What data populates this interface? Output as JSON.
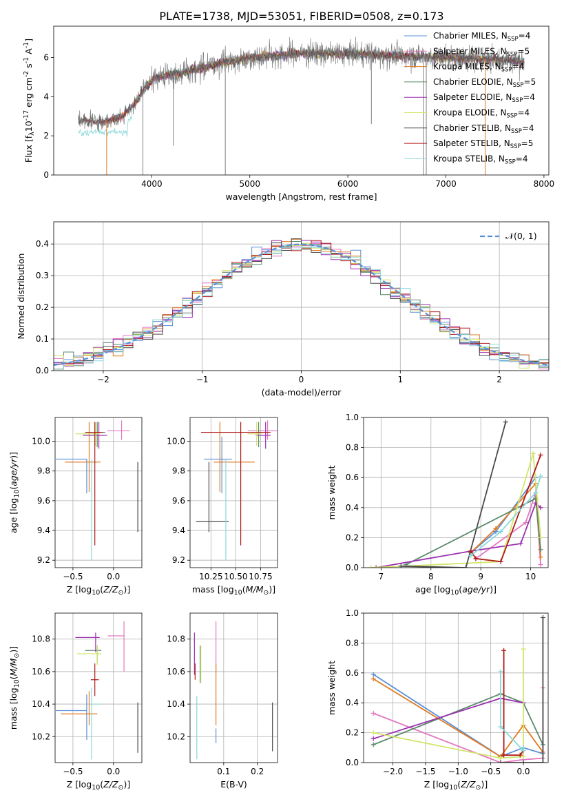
{
  "title": "PLATE=1738, MJD=53051, FIBERID=0508, z=0.173",
  "colors": {
    "Chabrier MILES": "#5a8fd8",
    "Salpeter MILES": "#e377c2",
    "Kroupa MILES": "#e07a1f",
    "Chabrier ELODIE": "#5b8a6a",
    "Salpeter ELODIE": "#9a2fb0",
    "Kroupa ELODIE": "#d2e66a",
    "Chabrier STELIB": "#4a4a4a",
    "Salpeter STELIB": "#b01818",
    "Kroupa STELIB": "#8ad8d8",
    "data": "#808080",
    "normal": "#5a8fd8"
  },
  "chart_data": [
    {
      "id": "spectrum",
      "type": "line",
      "xlabel": "wavelength [Angstrom, rest frame]",
      "ylabel": "Flux [f$_\\lambda$10$^{-17}$ erg cm$^{-2}$ s$^{-1}$ A$^{-1}$]",
      "xlim": [
        3000,
        8050
      ],
      "ylim": [
        0,
        7.6
      ],
      "xticks": [
        4000,
        5000,
        6000,
        7000,
        8000
      ],
      "yticks": [
        0,
        2,
        4,
        6
      ],
      "legend_position": "top-right",
      "legend": [
        {
          "base": "Chabrier MILES, N",
          "sub": "SSP",
          "tail": "=4"
        },
        {
          "base": "Salpeter MILES, N",
          "sub": "SSP",
          "tail": "=5"
        },
        {
          "base": "Kroupa MILES, N",
          "sub": "SSP",
          "tail": "=4"
        },
        {
          "base": "Chabrier ELODIE, N",
          "sub": "SSP",
          "tail": "=5"
        },
        {
          "base": "Salpeter ELODIE, N",
          "sub": "SSP",
          "tail": "=4"
        },
        {
          "base": "Kroupa ELODIE, N",
          "sub": "SSP",
          "tail": "=4"
        },
        {
          "base": "Chabrier STELIB, N",
          "sub": "SSP",
          "tail": "=4"
        },
        {
          "base": "Salpeter STELIB, N",
          "sub": "SSP",
          "tail": "=5"
        },
        {
          "base": "Kroupa STELIB, N",
          "sub": "SSP",
          "tail": "=4"
        }
      ],
      "continuum": [
        [
          3250,
          2.8
        ],
        [
          3500,
          2.7
        ],
        [
          3700,
          3.0
        ],
        [
          3850,
          3.8
        ],
        [
          3950,
          4.6
        ],
        [
          4050,
          5.0
        ],
        [
          4300,
          5.2
        ],
        [
          4600,
          5.6
        ],
        [
          5000,
          6.0
        ],
        [
          5500,
          6.2
        ],
        [
          6000,
          6.2
        ],
        [
          6500,
          6.1
        ],
        [
          7000,
          6.0
        ],
        [
          7500,
          5.9
        ],
        [
          7800,
          5.8
        ]
      ],
      "spikes": [
        [
          3540,
          0
        ],
        [
          3910,
          0
        ],
        [
          4750,
          0
        ],
        [
          6770,
          0
        ],
        [
          6800,
          0
        ],
        [
          7400,
          0
        ],
        [
          4220,
          1.5
        ],
        [
          6240,
          2.6
        ]
      ]
    },
    {
      "id": "residuals",
      "type": "histogram",
      "xlabel": "(data-model)/error",
      "ylabel": "Normed distribution",
      "xlim": [
        -2.5,
        2.5
      ],
      "ylim": [
        0,
        0.47
      ],
      "xticks": [
        -2,
        -1,
        0,
        1,
        2
      ],
      "yticks": [
        0.0,
        0.1,
        0.2,
        0.3,
        0.4
      ],
      "bin_width": 0.1,
      "normal_label": "𝒩(0, 1)",
      "legend_position": "top-right"
    },
    {
      "id": "age_vs_Z",
      "type": "errorbar",
      "xlabel": "Z [log$_{10}$($Z/Z_\\odot$)]",
      "ylabel": "age  [log$_{10}$($age/yr$)]",
      "xlim": [
        -0.72,
        0.35
      ],
      "ylim": [
        9.15,
        10.16
      ],
      "xticks": [
        -0.5,
        0.0
      ],
      "yticks": [
        9.2,
        9.4,
        9.6,
        9.8,
        10.0
      ],
      "points": [
        {
          "m": "Chabrier MILES",
          "x": -0.33,
          "y": 9.88,
          "xerr": [
            0.38,
            0.0
          ],
          "yerr": [
            0.23,
            0.0
          ]
        },
        {
          "m": "Salpeter MILES",
          "x": 0.1,
          "y": 10.07,
          "xerr": [
            0.18,
            0.1
          ],
          "yerr": [
            0.06,
            0.07
          ]
        },
        {
          "m": "Kroupa MILES",
          "x": -0.3,
          "y": 9.86,
          "xerr": [
            0.3,
            0.14
          ],
          "yerr": [
            0.2,
            0.27
          ]
        },
        {
          "m": "Chabrier ELODIE",
          "x": -0.2,
          "y": 10.06,
          "xerr": [
            0.12,
            0.1
          ],
          "yerr": [
            0.1,
            0.07
          ]
        },
        {
          "m": "Salpeter ELODIE",
          "x": -0.18,
          "y": 10.04,
          "xerr": [
            0.2,
            0.1
          ],
          "yerr": [
            0.09,
            0.09
          ]
        },
        {
          "m": "Kroupa ELODIE",
          "x": -0.22,
          "y": 10.05,
          "xerr": [
            0.25,
            0.05
          ],
          "yerr": [
            0.08,
            0.08
          ]
        },
        {
          "m": "Chabrier STELIB",
          "x": 0.3,
          "y": 9.46,
          "xerr": [
            0.0,
            0.0
          ],
          "yerr": [
            0.07,
            0.4
          ]
        },
        {
          "m": "Salpeter STELIB",
          "x": -0.23,
          "y": 10.06,
          "xerr": [
            0.12,
            0.1
          ],
          "yerr": [
            0.76,
            0.07
          ]
        },
        {
          "m": "Kroupa STELIB",
          "x": -0.27,
          "y": 9.88,
          "xerr": [
            0.0,
            0.0
          ],
          "yerr": [
            0.68,
            0.0
          ]
        }
      ]
    },
    {
      "id": "age_vs_mass",
      "type": "errorbar",
      "xlabel": "mass [log$_{10}$($M/M_\\odot$)]",
      "ylabel": "",
      "xlim": [
        10.04,
        10.92
      ],
      "ylim": [
        9.15,
        10.16
      ],
      "xticks": [
        10.25,
        10.5,
        10.75
      ],
      "yticks": [
        9.2,
        9.4,
        9.6,
        9.8,
        10.0
      ],
      "points": [
        {
          "m": "Chabrier MILES",
          "x": 10.36,
          "y": 9.88,
          "xerr": [
            0.18,
            0.1
          ],
          "yerr": [
            0.23,
            0.15
          ]
        },
        {
          "m": "Salpeter MILES",
          "x": 10.82,
          "y": 10.07,
          "xerr": [
            0.2,
            0.1
          ],
          "yerr": [
            0.06,
            0.07
          ]
        },
        {
          "m": "Kroupa MILES",
          "x": 10.34,
          "y": 9.86,
          "xerr": [
            0.06,
            0.35
          ],
          "yerr": [
            0.2,
            0.27
          ]
        },
        {
          "m": "Chabrier ELODIE",
          "x": 10.73,
          "y": 10.06,
          "xerr": [
            0.08,
            0.05
          ],
          "yerr": [
            0.1,
            0.07
          ]
        },
        {
          "m": "Salpeter ELODIE",
          "x": 10.8,
          "y": 10.04,
          "xerr": [
            0.1,
            0.05
          ],
          "yerr": [
            0.09,
            0.09
          ]
        },
        {
          "m": "Kroupa ELODIE",
          "x": 10.71,
          "y": 10.05,
          "xerr": [
            0.09,
            0.05
          ],
          "yerr": [
            0.08,
            0.08
          ]
        },
        {
          "m": "Chabrier STELIB",
          "x": 10.23,
          "y": 9.46,
          "xerr": [
            0.13,
            0.2
          ],
          "yerr": [
            0.07,
            0.4
          ]
        },
        {
          "m": "Salpeter STELIB",
          "x": 10.55,
          "y": 10.06,
          "xerr": [
            0.4,
            0.3
          ],
          "yerr": [
            0.76,
            0.07
          ]
        },
        {
          "m": "Kroupa STELIB",
          "x": 10.4,
          "y": 9.88,
          "xerr": [
            0.0,
            0.0
          ],
          "yerr": [
            0.68,
            0.0
          ]
        }
      ]
    },
    {
      "id": "mass_vs_Z",
      "type": "errorbar",
      "xlabel": "Z [log$_{10}$($Z/Z_\\odot$)]",
      "ylabel": "mass [log$_{10}$($M/M_\\odot$)]",
      "xlim": [
        -0.72,
        0.35
      ],
      "ylim": [
        10.04,
        10.96
      ],
      "xticks": [
        -0.5,
        0.0
      ],
      "yticks": [
        10.2,
        10.4,
        10.6,
        10.8
      ],
      "points": [
        {
          "m": "Chabrier MILES",
          "x": -0.33,
          "y": 10.36,
          "xerr": [
            0.38,
            0.0
          ],
          "yerr": [
            0.18,
            0.1
          ]
        },
        {
          "m": "Salpeter MILES",
          "x": 0.13,
          "y": 10.82,
          "xerr": [
            0.2,
            0.0
          ],
          "yerr": [
            0.22,
            0.09
          ]
        },
        {
          "m": "Kroupa MILES",
          "x": -0.3,
          "y": 10.34,
          "xerr": [
            0.35,
            0.1
          ],
          "yerr": [
            0.07,
            0.14
          ]
        },
        {
          "m": "Chabrier ELODIE",
          "x": -0.2,
          "y": 10.73,
          "xerr": [
            0.15,
            0.05
          ],
          "yerr": [
            0.08,
            0.03
          ]
        },
        {
          "m": "Salpeter ELODIE",
          "x": -0.22,
          "y": 10.81,
          "xerr": [
            0.25,
            0.05
          ],
          "yerr": [
            0.09,
            0.03
          ]
        },
        {
          "m": "Kroupa ELODIE",
          "x": -0.2,
          "y": 10.71,
          "xerr": [
            0.25,
            0.05
          ],
          "yerr": [
            0.07,
            0.05
          ]
        },
        {
          "m": "Chabrier STELIB",
          "x": 0.3,
          "y": 10.23,
          "xerr": [
            0.0,
            0.0
          ],
          "yerr": [
            0.13,
            0.18
          ]
        },
        {
          "m": "Salpeter STELIB",
          "x": -0.23,
          "y": 10.55,
          "xerr": [
            0.05,
            0.05
          ],
          "yerr": [
            0.1,
            0.1
          ]
        },
        {
          "m": "Kroupa STELIB",
          "x": -0.27,
          "y": 10.4,
          "xerr": [
            0.0,
            0.1
          ],
          "yerr": [
            0.34,
            0.1
          ]
        }
      ]
    },
    {
      "id": "mass_vs_EBV",
      "type": "errorbar",
      "xlabel": "E(B-V)",
      "ylabel": "",
      "xlim": [
        0.0,
        0.26
      ],
      "ylim": [
        10.04,
        10.96
      ],
      "xticks": [
        0.1,
        0.2
      ],
      "yticks": [
        10.2,
        10.4,
        10.6,
        10.8
      ],
      "points": [
        {
          "m": "Chabrier MILES",
          "x": 0.077,
          "y": 10.2,
          "xerr": [
            0.0,
            0.0
          ],
          "yerr": [
            0.04,
            0.05
          ]
        },
        {
          "m": "Salpeter MILES",
          "x": 0.077,
          "y": 10.82,
          "xerr": [
            0.0,
            0.0
          ],
          "yerr": [
            0.22,
            0.09
          ]
        },
        {
          "m": "Kroupa MILES",
          "x": 0.077,
          "y": 10.34,
          "xerr": [
            0.0,
            0.0
          ],
          "yerr": [
            0.07,
            0.31
          ]
        },
        {
          "m": "Chabrier ELODIE",
          "x": 0.03,
          "y": 10.6,
          "xerr": [
            0.0,
            0.0
          ],
          "yerr": [
            0.07,
            0.16
          ]
        },
        {
          "m": "Salpeter ELODIE",
          "x": 0.013,
          "y": 10.7,
          "xerr": [
            0.0,
            0.0
          ],
          "yerr": [
            0.12,
            0.14
          ]
        },
        {
          "m": "Kroupa ELODIE",
          "x": 0.032,
          "y": 10.65,
          "xerr": [
            0.0,
            0.0
          ],
          "yerr": [
            0.12,
            0.11
          ]
        },
        {
          "m": "Chabrier STELIB",
          "x": 0.245,
          "y": 10.23,
          "xerr": [
            0.0,
            0.0
          ],
          "yerr": [
            0.12,
            0.18
          ]
        },
        {
          "m": "Salpeter STELIB",
          "x": 0.015,
          "y": 10.6,
          "xerr": [
            0.0,
            0.0
          ],
          "yerr": [
            0.05,
            0.05
          ]
        },
        {
          "m": "Kroupa STELIB",
          "x": 0.02,
          "y": 10.25,
          "xerr": [
            0.0,
            0.0
          ],
          "yerr": [
            0.19,
            0.2
          ]
        }
      ]
    },
    {
      "id": "weight_vs_age",
      "type": "line",
      "xlabel": "age  [log$_{10}$($age/yr$)]",
      "ylabel": "mass weight",
      "xlim": [
        6.65,
        10.35
      ],
      "ylim": [
        0,
        1.0
      ],
      "xticks": [
        7,
        8,
        9,
        10
      ],
      "yticks": [
        0.0,
        0.2,
        0.4,
        0.6,
        0.8,
        1.0
      ],
      "series": [
        {
          "m": "Chabrier MILES",
          "x": [
            8.8,
            9.3,
            10.1
          ],
          "y": [
            0.1,
            0.24,
            0.6
          ]
        },
        {
          "m": "Salpeter MILES",
          "x": [
            8.9,
            9.9,
            10.1,
            10.2
          ],
          "y": [
            0.06,
            0.3,
            0.5,
            0.02
          ]
        },
        {
          "m": "Kroupa MILES",
          "x": [
            8.8,
            9.3,
            10.1,
            10.2
          ],
          "y": [
            0.1,
            0.26,
            0.56,
            0.07
          ]
        },
        {
          "m": "Chabrier ELODIE",
          "x": [
            7.5,
            10.1,
            10.2
          ],
          "y": [
            0.02,
            0.46,
            0.12
          ]
        },
        {
          "m": "Salpeter ELODIE",
          "x": [
            6.9,
            8.8,
            9.8,
            10.1,
            10.2
          ],
          "y": [
            0.0,
            0.11,
            0.16,
            0.43,
            0.4
          ]
        },
        {
          "m": "Kroupa ELODIE",
          "x": [
            6.8,
            9.4,
            10.05,
            10.2
          ],
          "y": [
            0.0,
            0.04,
            0.76,
            0.2
          ]
        },
        {
          "m": "Chabrier STELIB",
          "x": [
            7.4,
            8.7,
            9.5
          ],
          "y": [
            0.01,
            0.0,
            0.97
          ]
        },
        {
          "m": "Salpeter STELIB",
          "x": [
            8.8,
            8.9,
            9.4,
            10.2
          ],
          "y": [
            0.11,
            0.06,
            0.04,
            0.75
          ]
        },
        {
          "m": "Kroupa STELIB",
          "x": [
            8.8,
            9.4,
            10.1,
            10.2
          ],
          "y": [
            0.08,
            0.24,
            0.5,
            0.61
          ]
        }
      ]
    },
    {
      "id": "weight_vs_Z",
      "type": "line",
      "xlabel": "Z [log$_{10}$($Z/Z_\\odot$)]",
      "ylabel": "mass weight",
      "xlim": [
        -2.45,
        0.38
      ],
      "ylim": [
        0,
        1.0
      ],
      "xticks": [
        -2.0,
        -1.5,
        -1.0,
        -0.5,
        0.0
      ],
      "yticks": [
        0.0,
        0.2,
        0.4,
        0.6,
        0.8,
        1.0
      ],
      "series": [
        {
          "m": "Chabrier MILES",
          "x": [
            -2.3,
            -0.35,
            0.0,
            0.3
          ],
          "y": [
            0.59,
            0.04,
            0.1,
            0.06
          ]
        },
        {
          "m": "Salpeter MILES",
          "x": [
            -2.3,
            -0.35,
            0.0,
            0.3,
            0.3
          ],
          "y": [
            0.33,
            0.0,
            0.02,
            0.03,
            0.5
          ]
        },
        {
          "m": "Kroupa MILES",
          "x": [
            -2.3,
            -0.35,
            0.0,
            0.3
          ],
          "y": [
            0.56,
            0.04,
            0.25,
            0.07
          ]
        },
        {
          "m": "Chabrier ELODIE",
          "x": [
            -2.3,
            -0.35,
            0.0,
            0.3
          ],
          "y": [
            0.12,
            0.46,
            0.4,
            0.12
          ]
        },
        {
          "m": "Salpeter ELODIE",
          "x": [
            -2.3,
            -0.35,
            0.0
          ],
          "y": [
            0.16,
            0.43,
            0.4
          ]
        },
        {
          "m": "Kroupa ELODIE",
          "x": [
            -2.3,
            -0.35,
            0.0,
            0.0
          ],
          "y": [
            0.2,
            0.03,
            0.04,
            0.76
          ]
        },
        {
          "m": "Chabrier STELIB",
          "x": [
            -0.35,
            0.0,
            0.3,
            0.3
          ],
          "y": [
            0.0,
            0.0,
            0.0,
            0.97
          ]
        },
        {
          "m": "Salpeter STELIB",
          "x": [
            -0.3,
            -0.3,
            -0.05,
            0.0
          ],
          "y": [
            0.75,
            0.05,
            0.05,
            0.08
          ]
        },
        {
          "m": "Kroupa STELIB",
          "x": [
            -0.35,
            -0.35,
            0.0,
            0.0
          ],
          "y": [
            0.61,
            0.24,
            0.08,
            0.1
          ]
        }
      ]
    }
  ]
}
